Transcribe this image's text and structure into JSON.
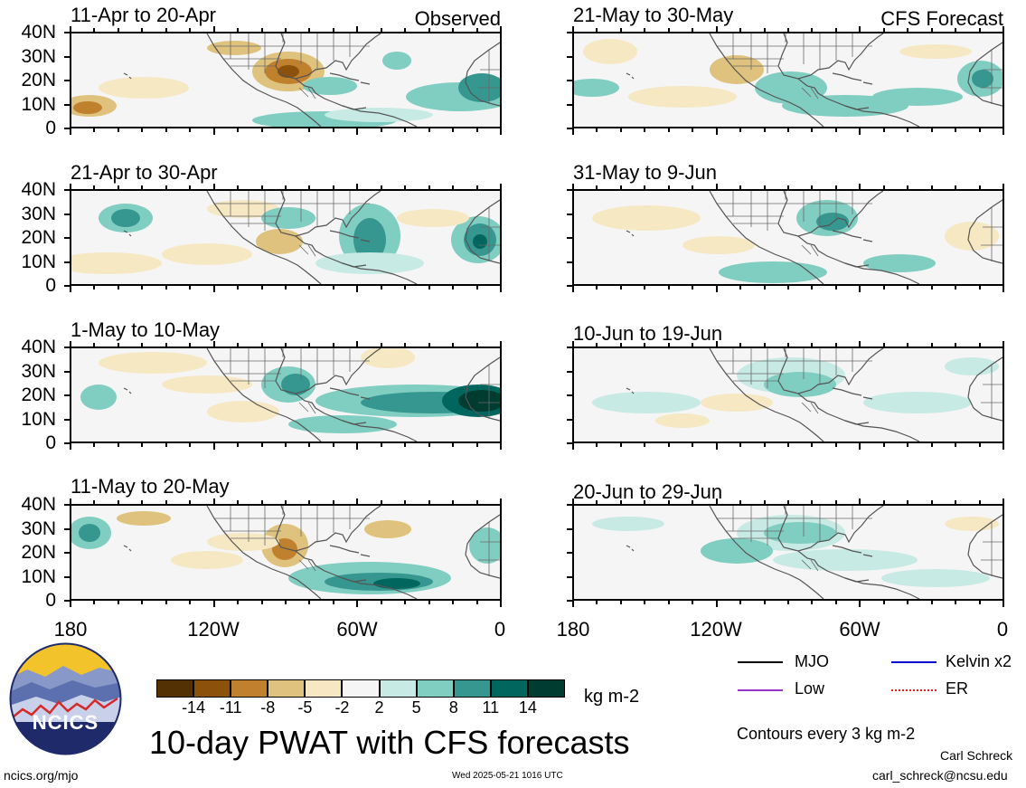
{
  "header": {
    "left_label": "Observed",
    "right_label": "CFS Forecast"
  },
  "panels_left": [
    {
      "title": "11-Apr to 20-Apr"
    },
    {
      "title": "21-Apr to 30-Apr"
    },
    {
      "title": "1-May to 10-May"
    },
    {
      "title": "11-May to 20-May"
    }
  ],
  "panels_right": [
    {
      "title": "21-May to 30-May"
    },
    {
      "title": "31-May to 9-Jun"
    },
    {
      "title": "10-Jun to 19-Jun"
    },
    {
      "title": "20-Jun to 29-Jun"
    }
  ],
  "lat_ticks": [
    "40N",
    "30N",
    "20N",
    "10N",
    "0"
  ],
  "lon_ticks": [
    "180",
    "120W",
    "60W",
    "0"
  ],
  "colorbar": {
    "labels": [
      "-14",
      "-11",
      "-8",
      "-5",
      "-2",
      "2",
      "5",
      "8",
      "11",
      "14"
    ],
    "colors": [
      "#543005",
      "#8c510a",
      "#bf812d",
      "#dfc27d",
      "#f6e8c3",
      "#f5f5f5",
      "#c7eae5",
      "#80cdc1",
      "#35978f",
      "#01665e",
      "#003c30"
    ],
    "units": "kg m-2"
  },
  "legend": {
    "items": [
      {
        "label": "MJO",
        "color": "#000000"
      },
      {
        "label": "Kelvin x2",
        "color": "#0000cc"
      },
      {
        "label": "Low",
        "color": "#9933cc"
      },
      {
        "label": "ER",
        "color": "#e0201b"
      }
    ],
    "contours_note": "Contours every 3 kg m-2"
  },
  "logo": {
    "text": "NCICS"
  },
  "title": "10-day PWAT with CFS forecasts",
  "footer": {
    "url": "ncics.org/mjo",
    "timestamp": "Wed 2025-05-21 1016 UTC",
    "author": "Carl Schreck",
    "email": "carl_schreck@ncsu.edu"
  }
}
